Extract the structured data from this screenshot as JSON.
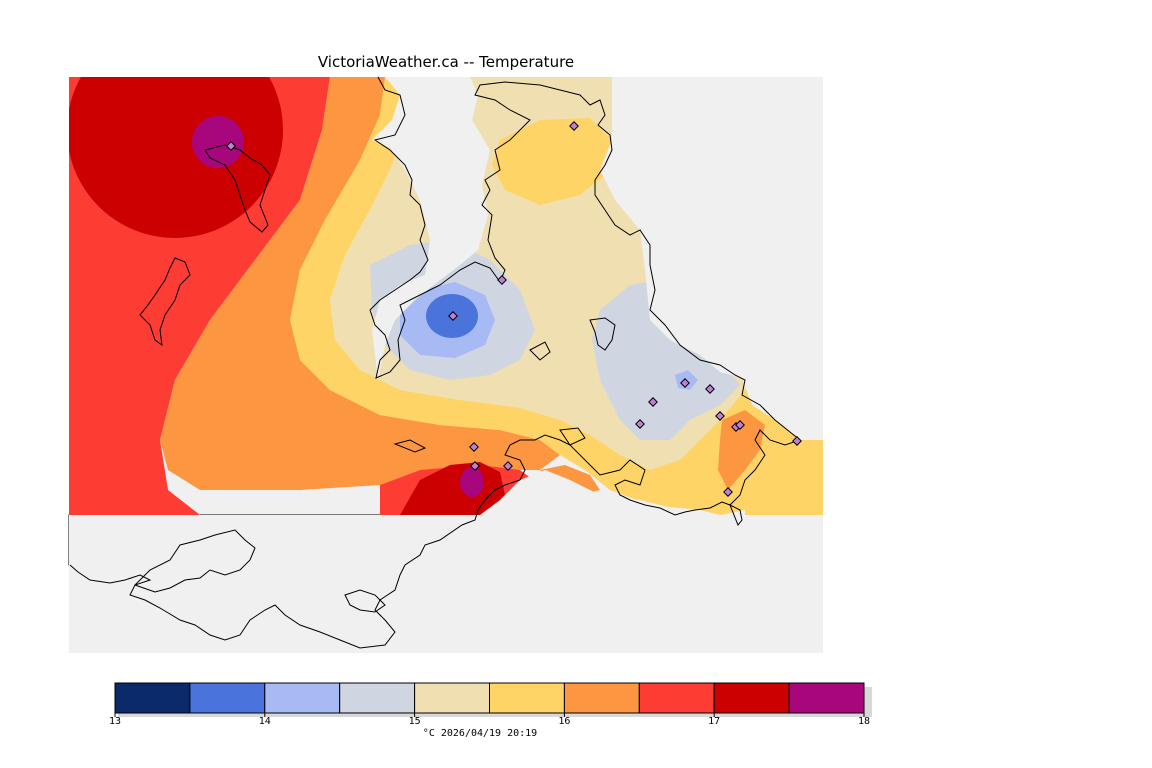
{
  "title": "VictoriaWeather.ca -- Temperature",
  "caption": "°C  2026/04/19 20:19",
  "legend": {
    "min": 13,
    "max": 18,
    "tick_labels": [
      "13",
      "14",
      "15",
      "16",
      "17",
      "18"
    ],
    "colors": [
      "#0b2a6b",
      "#4a74dc",
      "#a8baf4",
      "#d0d5e2",
      "#f0dfb0",
      "#fed466",
      "#fd9640",
      "#fd3c34",
      "#cc0000",
      "#a8067c"
    ]
  },
  "colors": {
    "no_data": "#f0f0f0",
    "coast": "#000000",
    "station_marker": "#c080d0"
  },
  "stations": [
    {
      "icon": "diamond-icon"
    },
    {
      "icon": "diamond-icon"
    },
    {
      "icon": "diamond-icon"
    },
    {
      "icon": "diamond-icon"
    },
    {
      "icon": "diamond-icon"
    },
    {
      "icon": "diamond-icon"
    },
    {
      "icon": "diamond-icon"
    },
    {
      "icon": "diamond-icon"
    },
    {
      "icon": "diamond-icon"
    },
    {
      "icon": "diamond-icon"
    },
    {
      "icon": "diamond-icon"
    },
    {
      "icon": "diamond-icon"
    },
    {
      "icon": "diamond-icon"
    },
    {
      "icon": "diamond-icon"
    },
    {
      "icon": "diamond-icon"
    },
    {
      "icon": "diamond-icon"
    }
  ]
}
